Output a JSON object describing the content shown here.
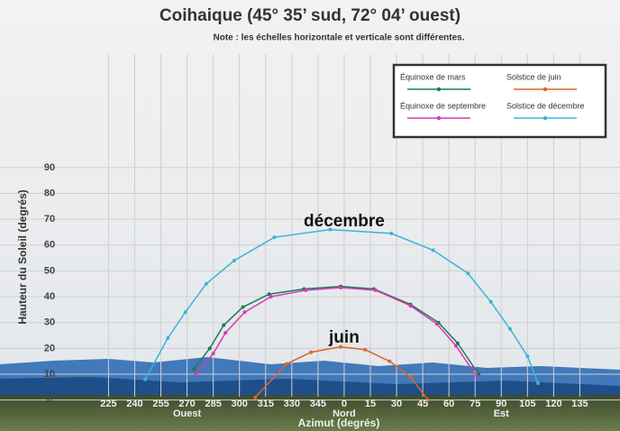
{
  "chart_data": {
    "type": "line",
    "title": "Coihaique (45° 35’ sud, 72° 04’ ouest)",
    "subtitle": "Note : les échelles horizontale et verticale sont différentes.",
    "x_label": "Azimut (degrés)",
    "y_label": "Hauteur du Soleil (degrés)",
    "xlim": [
      168,
      518
    ],
    "ylim": [
      -12,
      150
    ],
    "xticks": [
      225,
      240,
      255,
      270,
      285,
      300,
      315,
      330,
      345,
      {
        "value": 360,
        "label": "0"
      },
      {
        "value": 375,
        "label": "15"
      },
      {
        "value": 390,
        "label": "30"
      },
      {
        "value": 405,
        "label": "45"
      },
      {
        "value": 420,
        "label": "60"
      },
      {
        "value": 435,
        "label": "75"
      },
      {
        "value": 450,
        "label": "90"
      },
      {
        "value": 465,
        "label": "105"
      },
      {
        "value": 480,
        "label": "120"
      },
      {
        "value": 495,
        "label": "135"
      }
    ],
    "yticks": [
      0,
      10,
      20,
      30,
      40,
      50,
      60,
      70,
      80,
      90
    ],
    "direction_labels": [
      {
        "value": 270,
        "label": "Ouest"
      },
      {
        "value": 360,
        "label": "Nord"
      },
      {
        "value": 450,
        "label": "Est"
      }
    ],
    "annotations": [
      {
        "x": 360,
        "y": 69,
        "text": "décembre"
      },
      {
        "x": 360,
        "y": 24,
        "text": "juin"
      }
    ],
    "grid": true,
    "series": [
      {
        "name": "Équinoxe de mars",
        "color": "#1e7a55",
        "x": [
          274,
          283,
          291,
          302,
          317,
          337,
          358,
          377,
          398,
          414,
          425,
          437
        ],
        "values": [
          12,
          20,
          29,
          36,
          41,
          43,
          44,
          43,
          37,
          30,
          22,
          10
        ]
      },
      {
        "name": "Solstice de juin",
        "color": "#e0642a",
        "x": [
          309,
          327,
          341,
          358,
          372,
          386,
          398,
          408
        ],
        "values": [
          1,
          14,
          18.5,
          20.6,
          19.5,
          15,
          9,
          0
        ]
      },
      {
        "name": "Équinoxe de septembre",
        "color": "#d23cb4",
        "x": [
          275,
          285,
          292,
          303,
          318,
          338,
          358,
          378,
          398,
          413,
          424,
          436
        ],
        "values": [
          10,
          18,
          26,
          34,
          40,
          42.5,
          43.5,
          42.5,
          36.5,
          29.5,
          21,
          9
        ]
      },
      {
        "name": "Solstice de décembre",
        "color": "#3ab4d8",
        "x": [
          246,
          259,
          269,
          281,
          297,
          320,
          352,
          387,
          411,
          431,
          444,
          455,
          465,
          471
        ],
        "values": [
          8,
          24,
          34,
          45,
          54,
          63,
          66,
          64.5,
          58,
          49,
          38,
          27.5,
          17,
          6.5
        ]
      }
    ]
  }
}
